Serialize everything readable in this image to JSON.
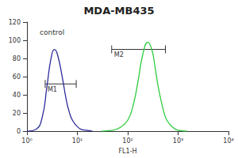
{
  "chart_data": {
    "type": "line",
    "title": "MDA-MB435",
    "x_label": "FL1-H",
    "log": "x",
    "xlim": [
      1,
      10000
    ],
    "xticks": [
      {
        "value": 1,
        "label": "10⁰"
      },
      {
        "value": 10,
        "label": "10¹"
      },
      {
        "value": 100,
        "label": "10²"
      },
      {
        "value": 1000,
        "label": "10³"
      },
      {
        "value": 10000,
        "label": "10⁴"
      }
    ],
    "ylim": [
      0,
      120
    ],
    "yticks": [
      0,
      20,
      40,
      60,
      80,
      100,
      120
    ],
    "grid": false,
    "annotations": [
      "control"
    ],
    "series": [
      {
        "name": "control",
        "color": "#2a2a9a",
        "x": [
          1,
          1.5,
          2,
          2.5,
          3,
          3.5,
          4,
          5,
          6,
          7,
          8,
          10,
          12,
          15,
          20
        ],
        "values": [
          0,
          2,
          15,
          50,
          80,
          90,
          85,
          60,
          35,
          20,
          12,
          5,
          2,
          1,
          0
        ]
      },
      {
        "name": "MDA-MB435",
        "color": "#2ecc40",
        "x": [
          30,
          50,
          70,
          100,
          130,
          160,
          200,
          250,
          300,
          350,
          400,
          500,
          600,
          800,
          1000,
          1500
        ],
        "values": [
          0,
          1,
          4,
          12,
          30,
          55,
          85,
          98,
          90,
          70,
          50,
          25,
          12,
          4,
          1,
          0
        ]
      }
    ],
    "gates": [
      {
        "label": "M1",
        "x": [
          2.3,
          9.5
        ],
        "y": 52
      },
      {
        "label": "M2",
        "x": [
          48,
          560
        ],
        "y": 90
      }
    ]
  }
}
